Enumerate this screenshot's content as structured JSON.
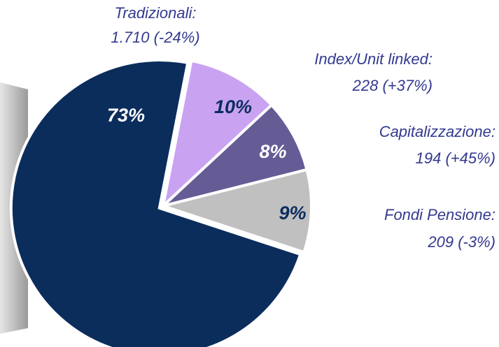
{
  "chart_data": {
    "type": "pie",
    "categories": [
      "Tradizionali:",
      "Index/Unit linked:",
      "Capitalizzazione:",
      "Fondi Pensione:"
    ],
    "details": [
      "1.710 (-24%)",
      "228 (+37%)",
      "194 (+45%)",
      "209 (-3%)"
    ],
    "values": [
      73,
      10,
      8,
      9
    ],
    "value_labels": [
      "73%",
      "10%",
      "8%",
      "9%"
    ],
    "colors": [
      "#0b2d5c",
      "#c9a3f2",
      "#655c96",
      "#c0c0c0"
    ],
    "label_colors": [
      "#ffffff",
      "#0b2d5c",
      "#ffffff",
      "#0b2d5c"
    ]
  }
}
